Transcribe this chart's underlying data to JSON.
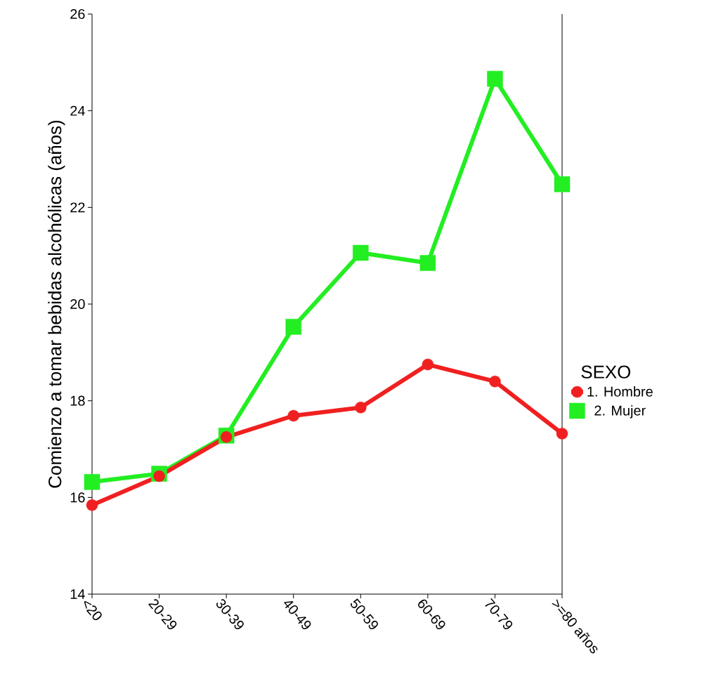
{
  "chart_data": {
    "type": "line",
    "ylabel": "Comienzo a tomar bebidas alcohólicas (años)",
    "legend_title": "SEXO",
    "categories": [
      "<20",
      "20-29",
      "30-39",
      "40-49",
      "50-59",
      "60-69",
      "70-79",
      ">=80 años"
    ],
    "series": [
      {
        "name": "1. Hombre",
        "color": "#f02020",
        "marker": "circle",
        "values": [
          15.84,
          16.44,
          17.25,
          17.69,
          17.86,
          18.75,
          18.4,
          17.32
        ]
      },
      {
        "name": "2. Mujer",
        "color": "#22ee22",
        "marker": "square",
        "values": [
          16.32,
          16.49,
          17.28,
          19.53,
          21.06,
          20.85,
          24.66,
          22.48
        ]
      }
    ],
    "ylim": [
      14,
      26
    ],
    "yticks": [
      14,
      16,
      18,
      20,
      22,
      24,
      26
    ],
    "grid": false,
    "legend": "right",
    "line_style": "solid"
  }
}
